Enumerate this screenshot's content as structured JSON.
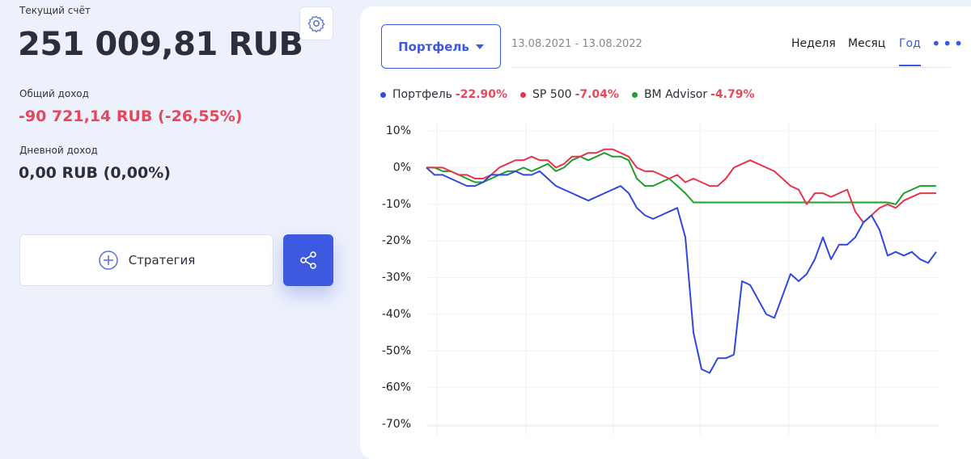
{
  "account": {
    "label": "Текущий счёт",
    "value": "251 009,81 RUB",
    "total_income_label": "Общий доход",
    "total_income": "-90 721,14 RUB (-26,55%)",
    "daily_income_label": "Дневной доход",
    "daily_income": "0,00 RUB (0,00%)"
  },
  "buttons": {
    "strategy": "Стратегия"
  },
  "toolbar": {
    "dropdown": "Портфель",
    "date_range": "13.08.2021 - 13.08.2022",
    "periods": [
      "Неделя",
      "Месяц",
      "Год"
    ],
    "active_period": 2
  },
  "chart_data": {
    "type": "line",
    "ylim": [
      -70,
      10
    ],
    "yticks": [
      {
        "value": 10,
        "label": "10%"
      },
      {
        "value": 0,
        "label": "0%"
      },
      {
        "value": -10,
        "label": "-10%"
      },
      {
        "value": -20,
        "label": "-20%"
      },
      {
        "value": -30,
        "label": "-30%"
      },
      {
        "value": -40,
        "label": "-40%"
      },
      {
        "value": -50,
        "label": "-50%"
      },
      {
        "value": -60,
        "label": "-60%"
      },
      {
        "value": -70,
        "label": "-70%"
      }
    ],
    "series": [
      {
        "name": "Портфель",
        "legend_value": "-22.90%",
        "color": "#3048e0",
        "values": [
          0,
          -2,
          -2,
          -3,
          -4,
          -5,
          -5,
          -4,
          -2,
          -2,
          -2,
          -1,
          -2,
          -2,
          -1,
          -3,
          -5,
          -6,
          -7,
          -8,
          -9,
          -8,
          -7,
          -6,
          -5,
          -7,
          -11,
          -13,
          -14,
          -13,
          -12,
          -11,
          -19,
          -45,
          -55,
          -56,
          -52,
          -52,
          -51,
          -31,
          -32,
          -36,
          -40,
          -41,
          -35,
          -29,
          -31,
          -29,
          -25,
          -19,
          -25,
          -21,
          -21,
          -19,
          -15,
          -13,
          -17,
          -24,
          -23,
          -24,
          -23,
          -25,
          -26,
          -23
        ]
      },
      {
        "name": "SP 500",
        "legend_value": "-7.04%",
        "color": "#e8334a",
        "values": [
          0,
          0,
          0,
          -1,
          -2,
          -2,
          -3,
          -3,
          -2,
          0,
          1,
          2,
          2,
          3,
          2,
          2,
          0,
          1,
          3,
          3,
          4,
          4,
          5,
          5,
          4,
          3,
          0,
          -1,
          -1,
          -2,
          -3,
          -2,
          -4,
          -3,
          -4,
          -5,
          -5,
          -3,
          0,
          1,
          2,
          1,
          0,
          -1,
          -3,
          -5,
          -6,
          -10,
          -7,
          -7,
          -8,
          -7,
          -6,
          -12,
          -15,
          -13,
          -11,
          -10,
          -11,
          -9,
          -8,
          -7,
          -7,
          -7
        ]
      },
      {
        "name": "BM Advisor",
        "legend_value": "-4.79%",
        "color": "#1e9e2a",
        "values": [
          0,
          0,
          -1,
          -1,
          -2,
          -3,
          -4,
          -4,
          -3,
          -2,
          -1,
          -1,
          0,
          -1,
          0,
          1,
          -1,
          0,
          2,
          3,
          2,
          3,
          4,
          3,
          3,
          2,
          -3,
          -5,
          -5,
          -4,
          -3,
          -5,
          -7,
          -9.5,
          -9.5,
          -9.5,
          -9.5,
          -9.5,
          -9.5,
          -9.5,
          -9.5,
          -9.5,
          -9.5,
          -9.5,
          -9.5,
          -9.5,
          -9.5,
          -9.5,
          -9.5,
          -9.5,
          -9.5,
          -9.5,
          -9.5,
          -9.5,
          -9.5,
          -9.5,
          -9.5,
          -9.5,
          -10,
          -7,
          -6,
          -5,
          -5,
          -5
        ]
      }
    ]
  }
}
